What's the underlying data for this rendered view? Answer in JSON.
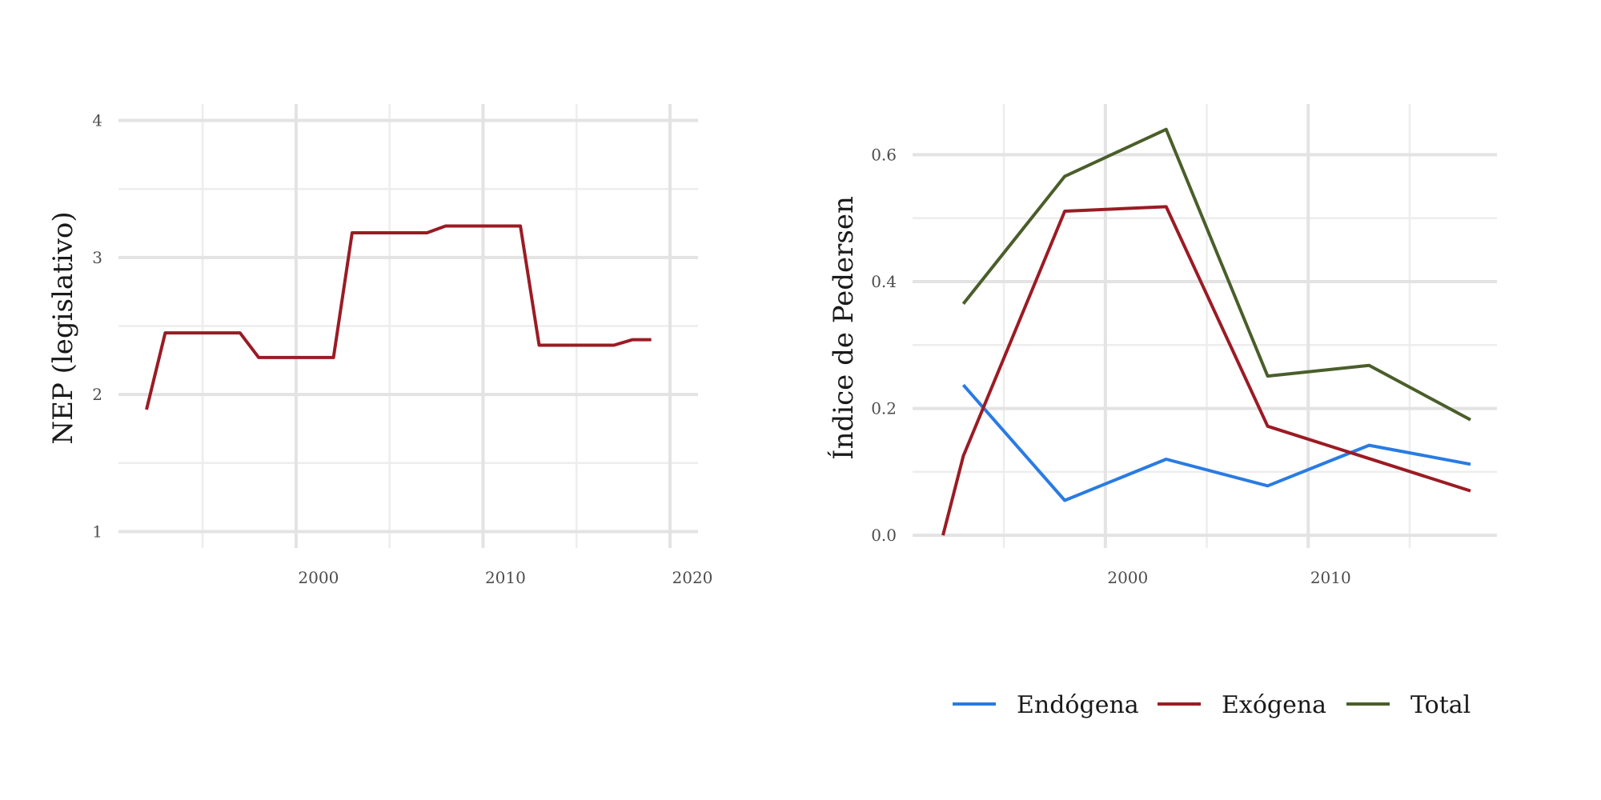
{
  "chart_data": [
    {
      "type": "line",
      "ylabel": "NEP (legislativo)",
      "xlim": [
        1990.5,
        2021.5
      ],
      "ylim": [
        0.88,
        4.12
      ],
      "x_major_ticks": [
        2000,
        2010,
        2020
      ],
      "x_major_tick_labels": [
        "2000",
        "2010",
        "2020"
      ],
      "x_minor_ticks": [
        1995,
        2005,
        2015
      ],
      "y_major_ticks": [
        1,
        2,
        3,
        4
      ],
      "y_major_tick_labels": [
        "1",
        "2",
        "3",
        "4"
      ],
      "y_minor_ticks": [
        1.5,
        2.5,
        3.5
      ],
      "grid": true,
      "series": [
        {
          "color": "#9b1b24",
          "x": [
            1992,
            1993,
            1997,
            1998,
            2002,
            2003,
            2007,
            2008,
            2012,
            2013,
            2017,
            2018,
            2019
          ],
          "y": [
            1.89,
            2.45,
            2.45,
            2.27,
            2.27,
            3.18,
            3.18,
            3.23,
            3.23,
            2.36,
            2.36,
            2.4,
            2.4
          ]
        }
      ]
    },
    {
      "type": "line",
      "ylabel": "Índice de Pedersen",
      "xlim": [
        1990.5,
        2019.3
      ],
      "ylim": [
        -0.02,
        0.68
      ],
      "x_major_ticks": [
        2000,
        2010
      ],
      "x_major_tick_labels": [
        "2000",
        "2010"
      ],
      "x_minor_ticks": [
        1995,
        2005,
        2015
      ],
      "y_major_ticks": [
        0.0,
        0.2,
        0.4,
        0.6
      ],
      "y_major_tick_labels": [
        "0.0",
        "0.2",
        "0.4",
        "0.6"
      ],
      "y_minor_ticks": [
        0.1,
        0.3,
        0.5
      ],
      "grid": true,
      "legend_position": "bottom",
      "series": [
        {
          "name": "Endógena",
          "color": "#2a7be4",
          "x": [
            1993,
            1998,
            2003,
            2008,
            2013,
            2018
          ],
          "y": [
            0.237,
            0.055,
            0.12,
            0.078,
            0.142,
            0.112
          ]
        },
        {
          "name": "Exógena",
          "color": "#9b1b24",
          "x": [
            1992,
            1993,
            1998,
            2003,
            2008,
            2013,
            2018
          ],
          "y": [
            0.0,
            0.125,
            0.511,
            0.518,
            0.172,
            0.121,
            0.07
          ]
        },
        {
          "name": "Total",
          "color": "#4a5e2a",
          "x": [
            1993,
            1998,
            2003,
            2008,
            2013,
            2018
          ],
          "y": [
            0.365,
            0.566,
            0.64,
            0.251,
            0.268,
            0.182
          ]
        }
      ]
    }
  ]
}
